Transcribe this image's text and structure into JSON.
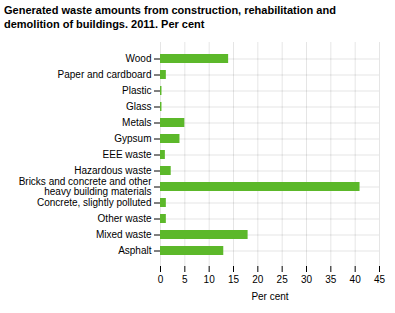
{
  "chart_data": {
    "type": "bar",
    "orientation": "horizontal",
    "title": "Generated waste amounts from construction, rehabilitation and\ndemolition of buildings. 2011. Per cent",
    "categories": [
      "Wood",
      "Paper and cardboard",
      "Plastic",
      "Glass",
      "Metals",
      "Gypsum",
      "EEE waste",
      "Hazardous waste",
      "Bricks and concrete and other\nheavy building materials",
      "Concrete, slightly polluted",
      "Other waste",
      "Mixed waste",
      "Asphalt"
    ],
    "values": [
      14,
      1.2,
      0.3,
      0.3,
      5.0,
      4.0,
      1.0,
      2.2,
      41,
      1.2,
      1.2,
      18,
      13
    ],
    "color": "#5cb82a",
    "xlabel": "Per cent",
    "xlim": [
      0,
      45
    ],
    "xticks": [
      0,
      5,
      10,
      15,
      20,
      25,
      30,
      35,
      40,
      45
    ],
    "grid": true
  }
}
